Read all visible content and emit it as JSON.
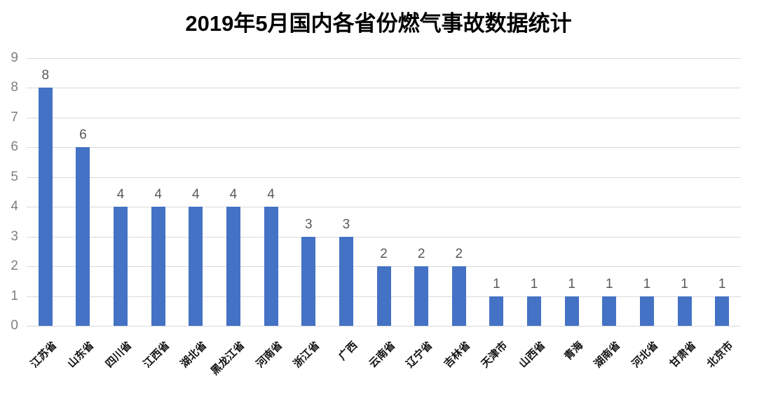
{
  "page": {
    "background_color": "#ffffff"
  },
  "chart_data": {
    "type": "bar",
    "title": "2019年5月国内各省份燃气事故数据统计",
    "categories": [
      "江苏省",
      "山东省",
      "四川省",
      "江西省",
      "湖北省",
      "黑龙江省",
      "河南省",
      "浙江省",
      "广西",
      "云南省",
      "辽宁省",
      "吉林省",
      "天津市",
      "山西省",
      "青海",
      "湖南省",
      "河北省",
      "甘肃省",
      "北京市"
    ],
    "values": [
      8,
      6,
      4,
      4,
      4,
      4,
      4,
      3,
      3,
      2,
      2,
      2,
      1,
      1,
      1,
      1,
      1,
      1,
      1
    ],
    "xlabel": "",
    "ylabel": "",
    "ylim": [
      0,
      9
    ],
    "yticks": [
      "0",
      "1",
      "2",
      "3",
      "4",
      "5",
      "6",
      "7",
      "8",
      "9"
    ],
    "grid": "horizontal",
    "legend": "none",
    "data_labels_shown": true,
    "colors": {
      "bar": "#4472C4",
      "gridline": "#D9D9D9",
      "y_tick_label": "#7F7F7F",
      "data_label": "#595959",
      "category_label": "#141414",
      "title": "#000000"
    }
  }
}
